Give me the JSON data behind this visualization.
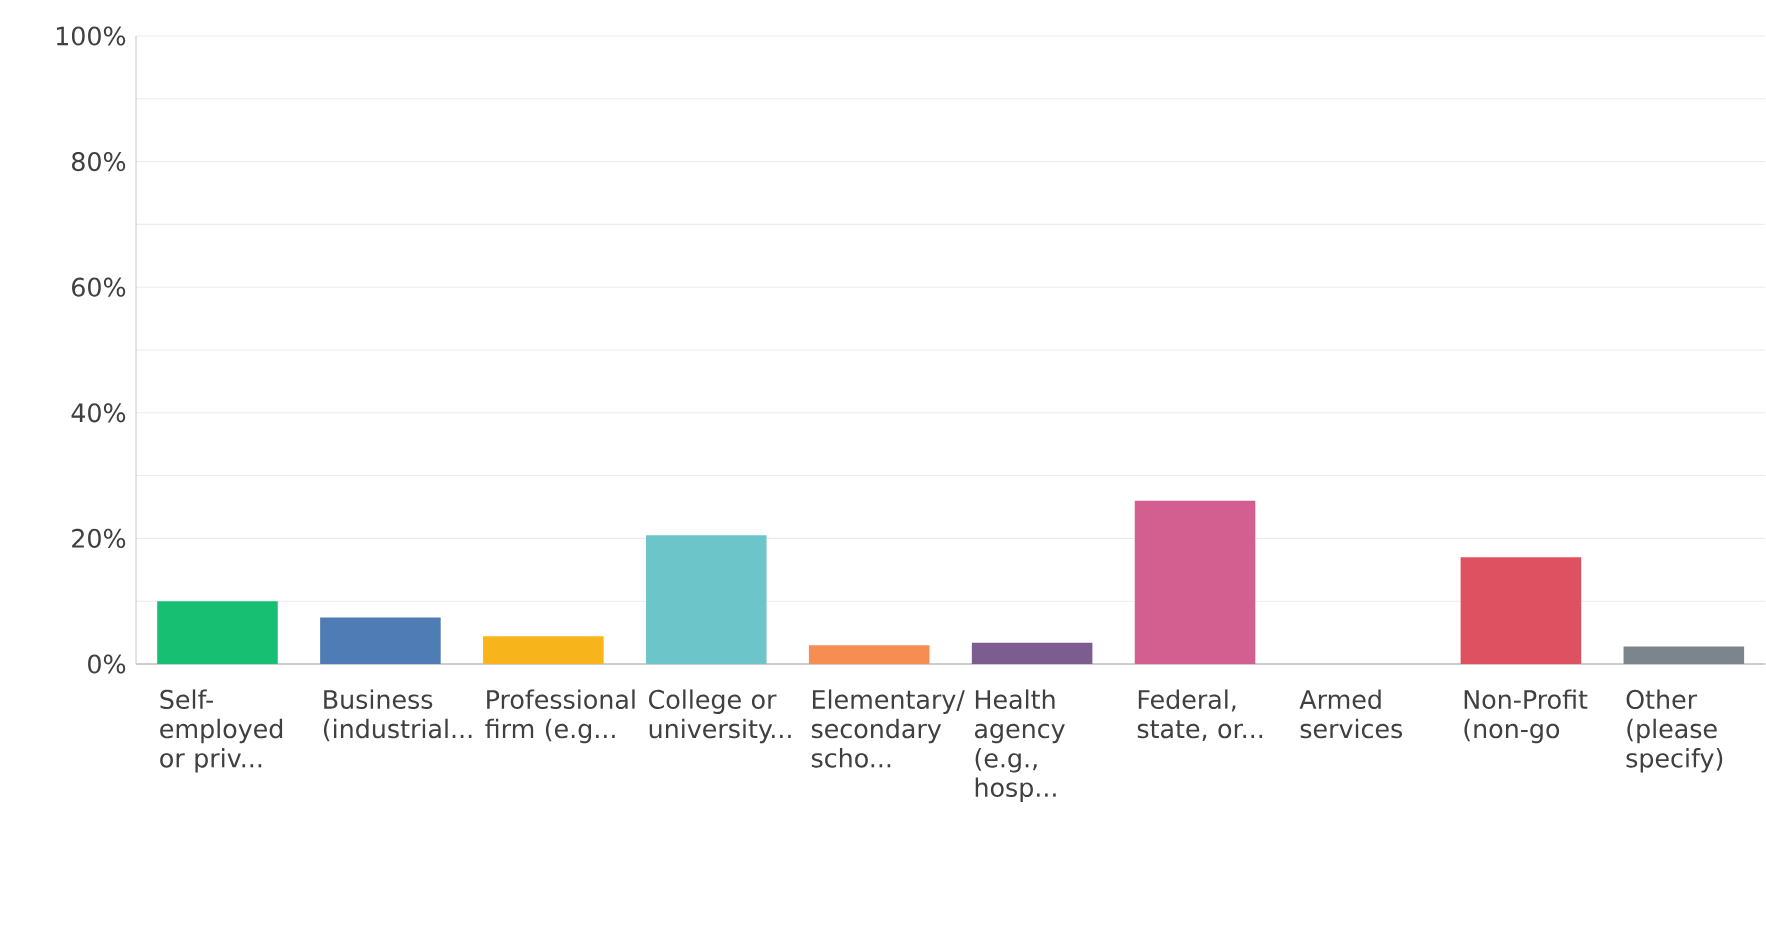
{
  "chart_data": {
    "type": "bar",
    "categories": [
      "Self-employed or priv...",
      "Business (industrial...",
      "Professional firm (e.g...",
      "College or university...",
      "Elementary/secondary scho...",
      "Health agency (e.g., hosp...",
      "Federal, state, or...",
      "Armed services",
      "Non-Profit (non-go",
      "Other (please specify)"
    ],
    "values": [
      10,
      7.4,
      4.4,
      20.5,
      3,
      3.4,
      26,
      0,
      17,
      2.8
    ],
    "colors": [
      "#17bf73",
      "#507cb6",
      "#f7b51b",
      "#6cc5c9",
      "#f68d53",
      "#7d5c90",
      "#d25f90",
      "#a8b0b5",
      "#de5161",
      "#7c858b"
    ],
    "ylim": [
      0,
      100
    ],
    "yticks": [
      {
        "value": 0,
        "label": "0%"
      },
      {
        "value": 10,
        "label": null
      },
      {
        "value": 20,
        "label": "20%"
      },
      {
        "value": 30,
        "label": null
      },
      {
        "value": 40,
        "label": "40%"
      },
      {
        "value": 50,
        "label": null
      },
      {
        "value": 60,
        "label": "60%"
      },
      {
        "value": 70,
        "label": null
      },
      {
        "value": 80,
        "label": "80%"
      },
      {
        "value": 90,
        "label": null
      },
      {
        "value": 100,
        "label": "100%"
      }
    ],
    "grid": "y"
  }
}
